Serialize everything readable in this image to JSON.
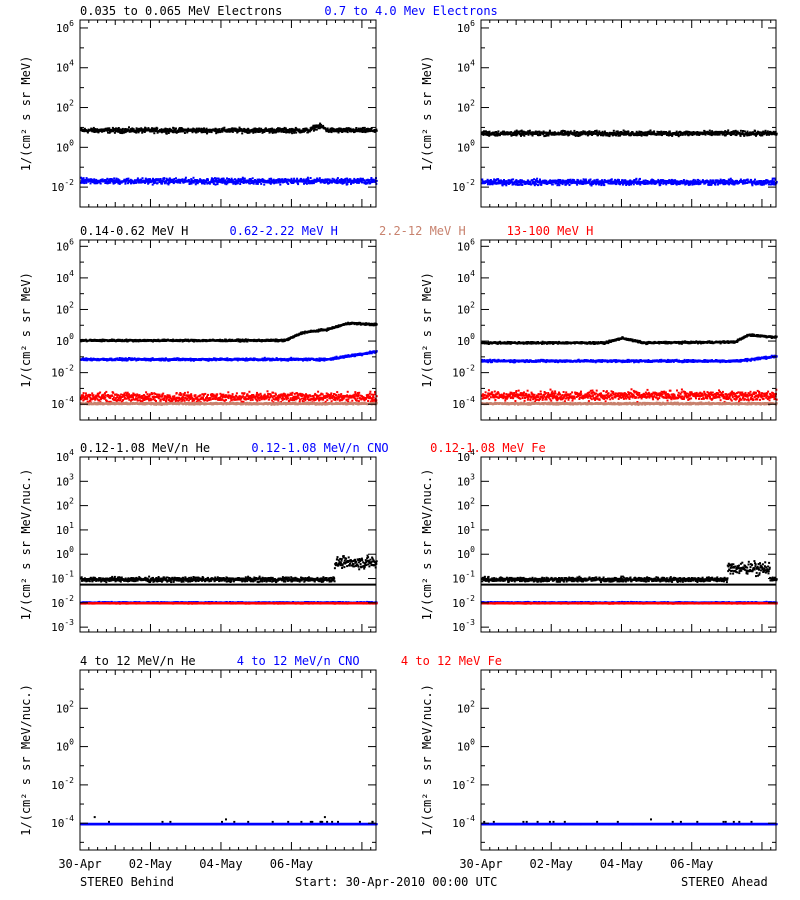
{
  "colors": {
    "black": "#000000",
    "blue": "#0000ff",
    "tan": "#c8826e",
    "red": "#ff0000"
  },
  "footer": {
    "left": "STEREO Behind",
    "center": "Start: 30-Apr-2010 00:00 UTC",
    "right": "STEREO Ahead"
  },
  "x_tick_labels": [
    "30-Apr",
    "02-May",
    "04-May",
    "06-May"
  ],
  "chart_data": [
    {
      "type": "scatter",
      "ylabel": "1/(cm² s sr MeV)",
      "yscale": "log",
      "ylim_exp": [
        -3,
        6.4
      ],
      "y_ticks_exp": [
        -2,
        0,
        2,
        4,
        6
      ],
      "legend": [
        {
          "text": "0.035 to 0.065 MeV Electrons",
          "color": "#000000"
        },
        {
          "text": "0.7 to 4.0 Mev Electrons",
          "color": "#0000ff"
        }
      ],
      "x_range_days": [
        0,
        8.4
      ],
      "series": [
        {
          "color": "#000000",
          "panel": "Behind",
          "baseline_exp": 0.9,
          "scatter": 0.1,
          "bumps": [
            [
              6.5,
              7.0,
              0.2
            ]
          ]
        },
        {
          "color": "#0000ff",
          "panel": "Behind",
          "baseline_exp": -1.65,
          "scatter": 0.12
        },
        {
          "color": "#000000",
          "panel": "Ahead",
          "baseline_exp": 0.75,
          "scatter": 0.1
        },
        {
          "color": "#0000ff",
          "panel": "Ahead",
          "baseline_exp": -1.7,
          "scatter": 0.12
        }
      ]
    },
    {
      "type": "scatter",
      "ylabel": "1/(cm² s sr MeV)",
      "yscale": "log",
      "ylim_exp": [
        -5,
        6.4
      ],
      "y_ticks_exp": [
        -4,
        -2,
        0,
        2,
        4,
        6
      ],
      "legend": [
        {
          "text": "0.14-0.62 MeV H",
          "color": "#000000"
        },
        {
          "text": "0.62-2.22 MeV H",
          "color": "#0000ff"
        },
        {
          "text": "2.2-12 MeV H",
          "color": "#c8826e"
        },
        {
          "text": "13-100 MeV H",
          "color": "#ff0000"
        }
      ],
      "series": [
        {
          "color": "#000000",
          "panel": "Behind",
          "baseline_exp": 0.1,
          "scatter": 0.05,
          "ramp": [
            [
              5.8,
              0.1
            ],
            [
              6.3,
              0.6
            ],
            [
              7.0,
              0.8
            ],
            [
              7.6,
              1.2
            ],
            [
              8.4,
              1.1
            ]
          ]
        },
        {
          "color": "#0000ff",
          "panel": "Behind",
          "baseline_exp": -1.1,
          "scatter": 0.06,
          "ramp": [
            [
              7.0,
              -1.1
            ],
            [
              8.4,
              -0.6
            ]
          ]
        },
        {
          "color": "#ff0000",
          "panel": "Behind",
          "baseline_exp": -3.5,
          "scatter": 0.25
        },
        {
          "color": "#c8826e",
          "panel": "Behind",
          "baseline_exp": -3.9,
          "scatter": 0.05
        },
        {
          "color": "#000000",
          "panel": "Ahead",
          "baseline_exp": -0.05,
          "scatter": 0.05,
          "ramp": [
            [
              3.5,
              -0.05
            ],
            [
              4.0,
              0.25
            ],
            [
              4.6,
              -0.05
            ],
            [
              7.2,
              0.0
            ],
            [
              7.6,
              0.45
            ],
            [
              8.4,
              0.3
            ]
          ]
        },
        {
          "color": "#0000ff",
          "panel": "Ahead",
          "baseline_exp": -1.2,
          "scatter": 0.06,
          "ramp": [
            [
              7.3,
              -1.2
            ],
            [
              8.4,
              -0.9
            ]
          ]
        },
        {
          "color": "#ff0000",
          "panel": "Ahead",
          "baseline_exp": -3.4,
          "scatter": 0.25
        },
        {
          "color": "#c8826e",
          "panel": "Ahead",
          "baseline_exp": -3.9,
          "scatter": 0.05
        }
      ]
    },
    {
      "type": "scatter",
      "ylabel": "1/(cm² s sr MeV/nuc.)",
      "yscale": "log",
      "ylim_exp": [
        -3.2,
        4
      ],
      "y_ticks_exp": [
        -3,
        -2,
        -1,
        0,
        1,
        2,
        3,
        4
      ],
      "legend": [
        {
          "text": "0.12-1.08 MeV/n He",
          "color": "#000000"
        },
        {
          "text": "0.12-1.08 MeV/n CNO",
          "color": "#0000ff"
        },
        {
          "text": "0.12-1.08 MeV Fe",
          "color": "#ff0000"
        }
      ],
      "series": [
        {
          "color": "#000000",
          "panel": "Behind",
          "baseline_exp": -1.0,
          "scatter": 0.08,
          "line_exp": -1.25,
          "burst": [
            [
              7.2,
              8.4,
              -0.3
            ]
          ]
        },
        {
          "color": "#0000ff",
          "panel": "Behind",
          "baseline_exp": -1.95,
          "scatter": 0.02
        },
        {
          "color": "#ff0000",
          "panel": "Behind",
          "baseline_exp": -1.98,
          "scatter": 0.01
        },
        {
          "color": "#000000",
          "panel": "Ahead",
          "baseline_exp": -1.0,
          "scatter": 0.08,
          "line_exp": -1.25,
          "burst": [
            [
              7.0,
              8.2,
              -0.55
            ]
          ]
        },
        {
          "color": "#0000ff",
          "panel": "Ahead",
          "baseline_exp": -1.95,
          "scatter": 0.02
        },
        {
          "color": "#ff0000",
          "panel": "Ahead",
          "baseline_exp": -1.98,
          "scatter": 0.01
        }
      ]
    },
    {
      "type": "scatter",
      "ylabel": "1/(cm² s sr MeV/nuc.)",
      "yscale": "log",
      "ylim_exp": [
        -5.4,
        4
      ],
      "y_ticks_exp": [
        -4,
        -2,
        0,
        2
      ],
      "legend": [
        {
          "text": "4 to 12 MeV/n He",
          "color": "#000000"
        },
        {
          "text": "4 to 12 MeV/n CNO",
          "color": "#0000ff"
        },
        {
          "text": "4 to 12 MeV Fe",
          "color": "#ff0000"
        }
      ],
      "series": [
        {
          "color": "#000000",
          "panel": "Behind",
          "baseline_exp": -4.0,
          "scatter": 0.0,
          "sparse": true
        },
        {
          "color": "#0000ff",
          "panel": "Behind",
          "baseline_exp": -4.0,
          "scatter": 0.0
        },
        {
          "color": "#000000",
          "panel": "Ahead",
          "baseline_exp": -4.0,
          "scatter": 0.0,
          "sparse": true
        },
        {
          "color": "#0000ff",
          "panel": "Ahead",
          "baseline_exp": -4.0,
          "scatter": 0.0
        }
      ]
    }
  ]
}
